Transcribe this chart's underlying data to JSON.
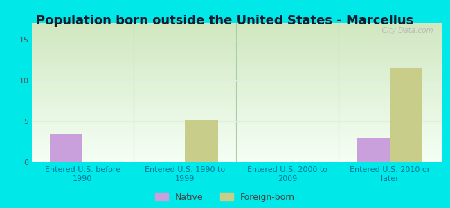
{
  "title": "Population born outside the United States - Marcellus",
  "categories": [
    "Entered U.S. before\n1990",
    "Entered U.S. 1990 to\n1999",
    "Entered U.S. 2000 to\n2009",
    "Entered U.S. 2010 or\nlater"
  ],
  "native_values": [
    3.5,
    0,
    0,
    3.0
  ],
  "foreign_values": [
    0,
    5.2,
    0,
    11.5
  ],
  "native_color": "#c9a0dc",
  "foreign_color": "#c8ce8a",
  "ylim": [
    0,
    17
  ],
  "yticks": [
    0,
    5,
    10,
    15
  ],
  "outer_bg": "#00e8e8",
  "plot_bg_top": "#f5fff5",
  "plot_bg_bottom": "#d0e8c0",
  "watermark": "  City-Data.com",
  "legend_native": "Native",
  "legend_foreign": "Foreign-born",
  "title_fontsize": 13,
  "tick_label_fontsize": 8,
  "bar_width": 0.32,
  "title_color": "#1a1a2e",
  "tick_color": "#007799",
  "ytick_color": "#555555",
  "divider_color": "#aaccaa",
  "grid_color": "#e0eedf"
}
